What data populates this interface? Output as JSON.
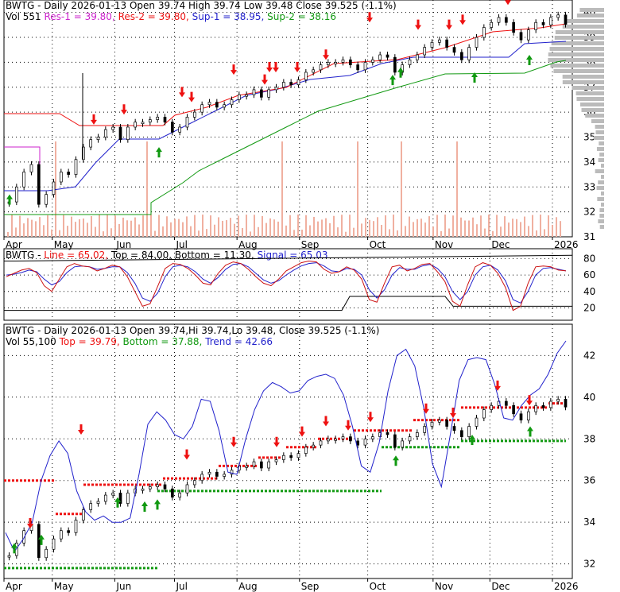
{
  "colors": {
    "up_arrow": "#119911",
    "down_arrow": "#ee1111",
    "resistance": "#ee1111",
    "support": "#119911",
    "sup1": "#2222cc",
    "res1": "#cc22cc",
    "volume": "#f0b0a0",
    "profile": "#bbbbbb",
    "trend": "#2222cc",
    "signal": "#cc1111"
  },
  "chart_data": [
    {
      "type": "candlestick",
      "header": {
        "title": "BWTG - Daily 2026-01-13 Open 39.74   High 39.74   Low 39.48   Close 39.525 (-1.1%)",
        "line2": [
          {
            "text": "Vol 551 ",
            "color": "#000000"
          },
          {
            "text": "Res-1 = 39.80, ",
            "color": "#cc22cc"
          },
          {
            "text": "Res-2 = 39.80, ",
            "color": "#ee1111"
          },
          {
            "text": "Sup-1 = 38.95, ",
            "color": "#2222cc"
          },
          {
            "text": "Sup-2 = 38.16",
            "color": "#119911"
          }
        ]
      },
      "ylim": [
        31,
        40.5
      ],
      "y_ticks": [
        31,
        32,
        33,
        34,
        35,
        36,
        37,
        38,
        39,
        40
      ],
      "x_ticks": [
        "Apr",
        "May",
        "Jun",
        "Jul",
        "Aug",
        "Sep",
        "Oct",
        "Nov",
        "Dec",
        "2026"
      ],
      "x_tick_pos": [
        0,
        0.085,
        0.195,
        0.3,
        0.41,
        0.52,
        0.64,
        0.755,
        0.855,
        0.965
      ],
      "close": [
        32.4,
        33.0,
        33.6,
        33.9,
        32.3,
        32.7,
        33.2,
        33.6,
        33.5,
        34.1,
        34.6,
        34.9,
        35.0,
        35.3,
        35.4,
        34.9,
        35.4,
        35.6,
        35.6,
        35.7,
        35.8,
        35.6,
        35.2,
        35.4,
        35.8,
        36.0,
        36.3,
        36.4,
        36.2,
        36.3,
        36.5,
        36.7,
        36.7,
        36.9,
        36.6,
        36.9,
        37.0,
        37.2,
        37.1,
        37.3,
        37.6,
        37.7,
        37.9,
        38.0,
        38.0,
        38.1,
        37.9,
        37.7,
        38.0,
        38.1,
        38.3,
        38.2,
        37.6,
        37.9,
        38.1,
        38.3,
        38.6,
        38.8,
        38.9,
        38.6,
        38.4,
        38.1,
        38.6,
        39.0,
        39.4,
        39.6,
        39.8,
        39.6,
        39.2,
        38.9,
        39.3,
        39.6,
        39.5,
        39.8,
        39.9,
        39.525
      ],
      "resistance": [
        36.0,
        36.0,
        35.6,
        35.6,
        35.6,
        36.5,
        37.1,
        37.5,
        38.0,
        38.0,
        38.5,
        39.2,
        39.6,
        39.8
      ],
      "sup2_start": [
        33.1,
        34.0
      ],
      "volume_spikes": [
        0.09,
        0.25,
        0.49,
        0.62,
        0.7,
        0.795
      ],
      "up_arrows": [
        {
          "x": 2,
          "y": 32.7
        },
        {
          "x": 190,
          "y": 34.6
        },
        {
          "x": 484,
          "y": 37.5
        },
        {
          "x": 494,
          "y": 37.8
        },
        {
          "x": 587,
          "y": 37.6
        },
        {
          "x": 656,
          "y": 38.3
        }
      ],
      "down_arrows": [
        {
          "x": 118,
          "y": 35.5
        },
        {
          "x": 156,
          "y": 35.9
        },
        {
          "x": 229,
          "y": 36.6
        },
        {
          "x": 241,
          "y": 36.4
        },
        {
          "x": 294,
          "y": 37.5
        },
        {
          "x": 333,
          "y": 37.1
        },
        {
          "x": 339,
          "y": 37.6
        },
        {
          "x": 347,
          "y": 37.6
        },
        {
          "x": 374,
          "y": 37.6
        },
        {
          "x": 410,
          "y": 38.1
        },
        {
          "x": 465,
          "y": 39.6
        },
        {
          "x": 526,
          "y": 39.3
        },
        {
          "x": 565,
          "y": 39.3
        },
        {
          "x": 582,
          "y": 39.5
        },
        {
          "x": 626,
          "y": 40.6
        },
        {
          "x": 639,
          "y": 40.3
        },
        {
          "x": 699,
          "y": 40.8
        },
        {
          "x": 712,
          "y": 40.5
        }
      ]
    },
    {
      "type": "line",
      "header": {
        "parts": [
          {
            "text": "BWTG - ",
            "color": "#000000"
          },
          {
            "text": "Line = 65.02, ",
            "color": "#ee1111"
          },
          {
            "text": "Top = 84.00, ",
            "color": "#000000"
          },
          {
            "text": "Bottom = 11.30, ",
            "color": "#000000"
          },
          {
            "text": "Signal = 65.03",
            "color": "#2222cc"
          }
        ]
      },
      "ylim": [
        5,
        92
      ],
      "y_ticks": [
        20,
        40,
        60,
        80
      ],
      "line": [
        58,
        62,
        66,
        68,
        63,
        47,
        40,
        55,
        70,
        74,
        71,
        70,
        65,
        68,
        72,
        70,
        58,
        40,
        22,
        25,
        46,
        68,
        74,
        73,
        68,
        60,
        50,
        48,
        62,
        72,
        76,
        74,
        67,
        58,
        50,
        47,
        55,
        65,
        70,
        75,
        77,
        76,
        67,
        62,
        64,
        70,
        66,
        55,
        30,
        27,
        50,
        70,
        72,
        65,
        68,
        73,
        74,
        64,
        52,
        28,
        22,
        48,
        70,
        75,
        72,
        62,
        45,
        17,
        22,
        50,
        70,
        71,
        70,
        66,
        65
      ],
      "signal": [
        60,
        61,
        63,
        66,
        64,
        55,
        48,
        52,
        63,
        70,
        71,
        70,
        67,
        68,
        70,
        70,
        63,
        50,
        32,
        28,
        38,
        58,
        70,
        72,
        70,
        64,
        55,
        50,
        57,
        67,
        73,
        74,
        70,
        62,
        54,
        50,
        53,
        60,
        66,
        71,
        74,
        75,
        71,
        65,
        64,
        68,
        67,
        60,
        42,
        32,
        42,
        60,
        69,
        67,
        67,
        71,
        73,
        68,
        58,
        40,
        30,
        40,
        60,
        70,
        72,
        66,
        53,
        30,
        26,
        40,
        60,
        68,
        69,
        67,
        65
      ]
    },
    {
      "type": "candlestick",
      "header": {
        "title": "BWTG - Daily 2026-01-13 Open 39.74,Hi 39.74,Lo 39.48, Close 39.525 (-1.1%)",
        "line2": [
          {
            "text": "Vol 55,100 ",
            "color": "#000000"
          },
          {
            "text": "Top = 39.79, ",
            "color": "#ee1111"
          },
          {
            "text": "Bottom = 37.88, ",
            "color": "#119911"
          },
          {
            "text": "Trend = 42.66",
            "color": "#2222cc"
          }
        ]
      },
      "ylim": [
        31.3,
        43.5
      ],
      "y_ticks": [
        32,
        34,
        36,
        38,
        40,
        42
      ],
      "trend": [
        33.5,
        32.6,
        33.2,
        34.0,
        36.0,
        37.2,
        37.9,
        37.3,
        35.5,
        34.5,
        34.1,
        34.3,
        34.0,
        34.0,
        34.2,
        36.3,
        38.7,
        39.3,
        38.9,
        38.2,
        38.0,
        38.6,
        39.9,
        39.8,
        38.4,
        36.4,
        36.3,
        38.0,
        39.4,
        40.3,
        40.7,
        40.5,
        40.2,
        40.3,
        40.8,
        41.0,
        41.1,
        40.9,
        40.1,
        38.6,
        36.7,
        36.4,
        37.8,
        40.3,
        42.0,
        42.3,
        41.5,
        39.5,
        36.8,
        35.7,
        38.2,
        40.8,
        41.8,
        41.9,
        41.8,
        40.6,
        39.0,
        38.9,
        39.6,
        40.1,
        40.4,
        41.1,
        42.1,
        42.7
      ]
    }
  ]
}
